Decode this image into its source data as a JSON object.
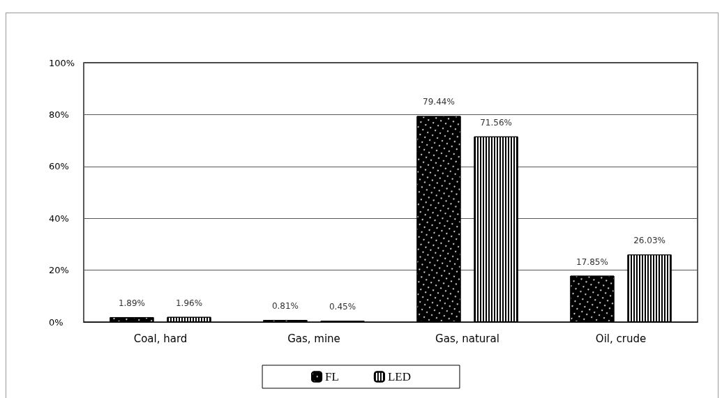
{
  "chart_data": {
    "type": "bar",
    "categories": [
      "Coal, hard",
      "Gas, mine",
      "Gas, natural",
      "Oil, crude"
    ],
    "series": [
      {
        "name": "FL",
        "color": "#000000",
        "values": [
          1.89,
          0.81,
          79.44,
          17.85
        ],
        "value_labels": [
          "1.89%",
          "0.81%",
          "79.44%",
          "17.85%"
        ]
      },
      {
        "name": "LED",
        "color": "#ffffff",
        "values": [
          1.96,
          0.45,
          71.56,
          26.03
        ],
        "value_labels": [
          "1.96%",
          "0.45%",
          "71.56%",
          "26.03%"
        ]
      }
    ],
    "ylim": [
      0,
      100
    ],
    "yticks": [
      {
        "value": 0,
        "label": "0%"
      },
      {
        "value": 20,
        "label": "20%"
      },
      {
        "value": 40,
        "label": "40%"
      },
      {
        "value": 60,
        "label": "60%"
      },
      {
        "value": 80,
        "label": "80%"
      },
      {
        "value": 100,
        "label": "100%"
      }
    ],
    "grid": "y",
    "legend": "bottom"
  }
}
